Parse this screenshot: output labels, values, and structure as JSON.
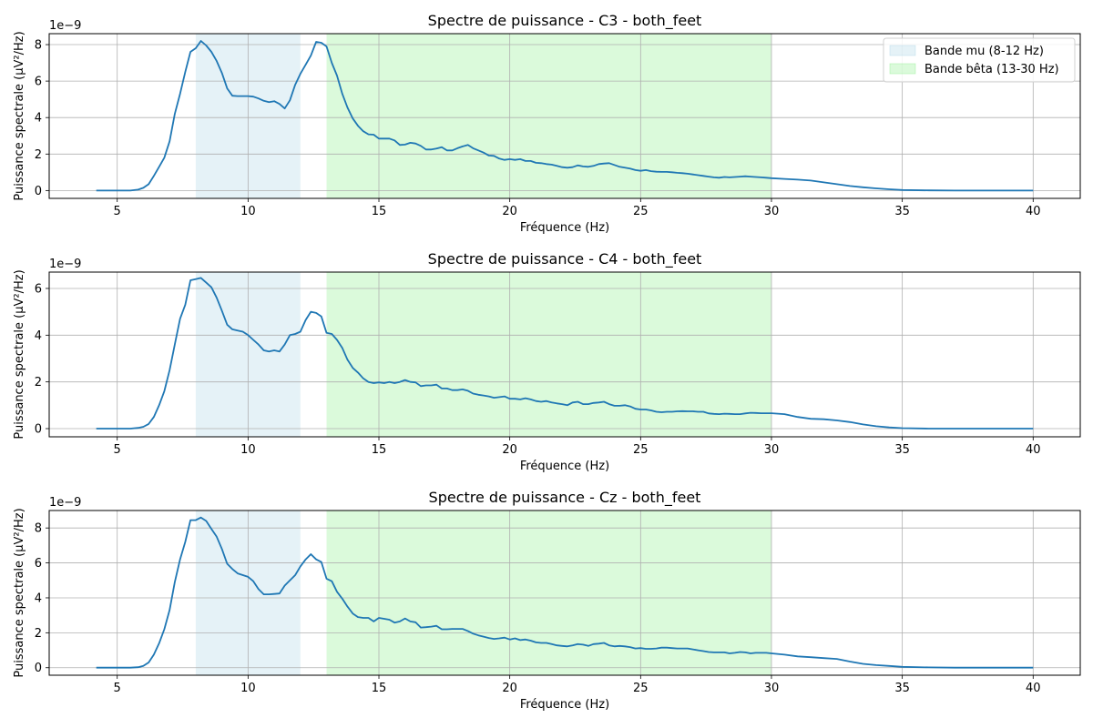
{
  "chart_data": [
    {
      "type": "line",
      "title": "Spectre de puissance - C3 - both_feet",
      "xlabel": "Fréquence (Hz)",
      "ylabel": "Puissance spectrale (µV²/Hz)",
      "y_offset_label": "1e−9",
      "xlim": [
        2.4,
        41.8
      ],
      "ylim": [
        -0.43,
        8.6
      ],
      "x_ticks": [
        5,
        10,
        15,
        20,
        25,
        30,
        35,
        40
      ],
      "y_ticks": [
        0,
        2,
        4,
        6,
        8
      ],
      "grid": true,
      "legend_position": "top-right",
      "bands": [
        {
          "name": "Bande mu (8-12 Hz)",
          "from": 8,
          "to": 12,
          "color": "#add8e6"
        },
        {
          "name": "Bande bêta (13-30 Hz)",
          "from": 13,
          "to": 30,
          "color": "#90ee90"
        }
      ],
      "series": [
        {
          "color": "#1f77b4",
          "x": [
            4.2,
            5.0,
            5.5,
            5.8,
            6.0,
            6.2,
            6.4,
            6.6,
            6.8,
            7.0,
            7.2,
            7.4,
            7.6,
            7.8,
            8.0,
            8.2,
            8.4,
            8.6,
            8.8,
            9.0,
            9.2,
            9.4,
            9.6,
            9.8,
            10.0,
            10.2,
            10.4,
            10.6,
            10.8,
            11.0,
            11.2,
            11.4,
            11.6,
            11.8,
            12.0,
            12.2,
            12.4,
            12.6,
            12.8,
            13.0,
            13.2,
            13.4,
            13.6,
            13.8,
            14.0,
            14.2,
            14.4,
            14.6,
            14.8,
            15.0,
            15.2,
            15.4,
            15.6,
            15.8,
            16.0,
            16.2,
            16.4,
            16.6,
            16.8,
            17.0,
            17.2,
            17.4,
            17.6,
            17.8,
            18.0,
            18.2,
            18.4,
            18.6,
            18.8,
            19.0,
            19.2,
            19.4,
            19.6,
            19.8,
            20.0,
            20.2,
            20.4,
            20.6,
            20.8,
            21.0,
            21.2,
            21.4,
            21.6,
            21.8,
            22.0,
            22.2,
            22.4,
            22.6,
            22.8,
            23.0,
            23.2,
            23.4,
            23.6,
            23.8,
            24.0,
            24.2,
            24.4,
            24.6,
            24.8,
            25.0,
            25.2,
            25.4,
            25.6,
            25.8,
            26.0,
            26.2,
            26.4,
            26.6,
            26.8,
            27.0,
            27.2,
            27.4,
            27.6,
            27.8,
            28.0,
            28.2,
            28.4,
            28.6,
            28.8,
            29.0,
            29.2,
            29.4,
            29.6,
            29.8,
            30.0,
            30.5,
            31.0,
            31.5,
            32.0,
            32.5,
            33.0,
            33.5,
            34.0,
            34.5,
            35.0,
            36.0,
            37.0,
            38.0,
            39.0,
            40.0
          ],
          "y": [
            0,
            0,
            0,
            0.05,
            0.15,
            0.35,
            0.8,
            1.3,
            1.8,
            2.7,
            4.2,
            5.3,
            6.5,
            7.6,
            7.8,
            8.2,
            7.95,
            7.6,
            7.1,
            6.45,
            5.6,
            5.2,
            5.18,
            5.18,
            5.18,
            5.15,
            5.05,
            4.92,
            4.85,
            4.9,
            4.75,
            4.5,
            4.95,
            5.8,
            6.4,
            6.9,
            7.4,
            8.15,
            8.1,
            7.9,
            7.0,
            6.3,
            5.3,
            4.55,
            3.95,
            3.55,
            3.25,
            3.08,
            3.06,
            2.85,
            2.85,
            2.85,
            2.75,
            2.5,
            2.52,
            2.62,
            2.58,
            2.45,
            2.25,
            2.25,
            2.3,
            2.38,
            2.2,
            2.2,
            2.32,
            2.42,
            2.5,
            2.32,
            2.2,
            2.08,
            1.92,
            1.9,
            1.75,
            1.68,
            1.72,
            1.68,
            1.72,
            1.62,
            1.62,
            1.52,
            1.5,
            1.45,
            1.42,
            1.35,
            1.28,
            1.25,
            1.28,
            1.38,
            1.32,
            1.3,
            1.35,
            1.45,
            1.48,
            1.5,
            1.4,
            1.3,
            1.25,
            1.2,
            1.12,
            1.08,
            1.12,
            1.06,
            1.03,
            1.02,
            1.02,
            1.0,
            0.97,
            0.95,
            0.92,
            0.88,
            0.84,
            0.8,
            0.76,
            0.72,
            0.7,
            0.74,
            0.72,
            0.74,
            0.76,
            0.78,
            0.76,
            0.74,
            0.72,
            0.7,
            0.68,
            0.64,
            0.6,
            0.55,
            0.45,
            0.35,
            0.25,
            0.18,
            0.12,
            0.07,
            0.03,
            0.01,
            0,
            0,
            0,
            0
          ]
        }
      ]
    },
    {
      "type": "line",
      "title": "Spectre de puissance - C4 - both_feet",
      "xlabel": "Fréquence (Hz)",
      "ylabel": "Puissance spectrale (µV²/Hz)",
      "y_offset_label": "1e−9",
      "xlim": [
        2.4,
        41.8
      ],
      "ylim": [
        -0.35,
        6.7
      ],
      "x_ticks": [
        5,
        10,
        15,
        20,
        25,
        30,
        35,
        40
      ],
      "y_ticks": [
        0,
        2,
        4,
        6
      ],
      "grid": true,
      "bands": [
        {
          "from": 8,
          "to": 12,
          "color": "#add8e6"
        },
        {
          "from": 13,
          "to": 30,
          "color": "#90ee90"
        }
      ],
      "series": [
        {
          "color": "#1f77b4",
          "x": [
            4.2,
            5.0,
            5.5,
            5.8,
            6.0,
            6.2,
            6.4,
            6.6,
            6.8,
            7.0,
            7.2,
            7.4,
            7.6,
            7.8,
            8.0,
            8.2,
            8.4,
            8.6,
            8.8,
            9.0,
            9.2,
            9.4,
            9.6,
            9.8,
            10.0,
            10.2,
            10.4,
            10.6,
            10.8,
            11.0,
            11.2,
            11.4,
            11.6,
            11.8,
            12.0,
            12.2,
            12.4,
            12.6,
            12.8,
            13.0,
            13.2,
            13.4,
            13.6,
            13.8,
            14.0,
            14.2,
            14.4,
            14.6,
            14.8,
            15.0,
            15.2,
            15.4,
            15.6,
            15.8,
            16.0,
            16.2,
            16.4,
            16.6,
            16.8,
            17.0,
            17.2,
            17.4,
            17.6,
            17.8,
            18.0,
            18.2,
            18.4,
            18.6,
            18.8,
            19.0,
            19.2,
            19.4,
            19.6,
            19.8,
            20.0,
            20.2,
            20.4,
            20.6,
            20.8,
            21.0,
            21.2,
            21.4,
            21.6,
            21.8,
            22.0,
            22.2,
            22.4,
            22.6,
            22.8,
            23.0,
            23.2,
            23.4,
            23.6,
            23.8,
            24.0,
            24.2,
            24.4,
            24.6,
            24.8,
            25.0,
            25.2,
            25.4,
            25.6,
            25.8,
            26.0,
            26.2,
            26.4,
            26.6,
            26.8,
            27.0,
            27.2,
            27.4,
            27.6,
            27.8,
            28.0,
            28.2,
            28.4,
            28.6,
            28.8,
            29.0,
            29.2,
            29.4,
            29.6,
            29.8,
            30.0,
            30.5,
            31.0,
            31.5,
            32.0,
            32.5,
            33.0,
            33.5,
            34.0,
            34.5,
            35.0,
            36.0,
            37.0,
            38.0,
            39.0,
            40.0
          ],
          "y": [
            0,
            0,
            0,
            0.03,
            0.08,
            0.2,
            0.5,
            1.0,
            1.6,
            2.5,
            3.6,
            4.7,
            5.3,
            6.35,
            6.4,
            6.45,
            6.25,
            6.05,
            5.6,
            5.05,
            4.45,
            4.25,
            4.2,
            4.15,
            4.0,
            3.8,
            3.6,
            3.35,
            3.3,
            3.35,
            3.3,
            3.6,
            4.0,
            4.05,
            4.15,
            4.65,
            5.0,
            4.95,
            4.8,
            4.1,
            4.05,
            3.8,
            3.45,
            2.95,
            2.6,
            2.4,
            2.15,
            2.0,
            1.95,
            1.98,
            1.95,
            2.0,
            1.95,
            2.0,
            2.08,
            2.0,
            1.98,
            1.82,
            1.85,
            1.85,
            1.88,
            1.72,
            1.72,
            1.65,
            1.65,
            1.68,
            1.62,
            1.5,
            1.45,
            1.42,
            1.38,
            1.32,
            1.35,
            1.38,
            1.28,
            1.28,
            1.25,
            1.3,
            1.25,
            1.18,
            1.15,
            1.18,
            1.12,
            1.08,
            1.05,
            1.0,
            1.12,
            1.15,
            1.05,
            1.05,
            1.1,
            1.12,
            1.15,
            1.05,
            0.98,
            0.98,
            1.0,
            0.95,
            0.85,
            0.82,
            0.82,
            0.78,
            0.72,
            0.7,
            0.72,
            0.72,
            0.74,
            0.75,
            0.74,
            0.74,
            0.72,
            0.72,
            0.65,
            0.63,
            0.62,
            0.64,
            0.63,
            0.62,
            0.62,
            0.65,
            0.68,
            0.67,
            0.66,
            0.66,
            0.66,
            0.62,
            0.5,
            0.42,
            0.4,
            0.35,
            0.28,
            0.18,
            0.1,
            0.05,
            0.02,
            0,
            0,
            0,
            0,
            0
          ]
        }
      ]
    },
    {
      "type": "line",
      "title": "Spectre de puissance - Cz - both_feet",
      "xlabel": "Fréquence (Hz)",
      "ylabel": "Puissance spectrale (µV²/Hz)",
      "y_offset_label": "1e−9",
      "xlim": [
        2.4,
        41.8
      ],
      "ylim": [
        -0.43,
        9.0
      ],
      "x_ticks": [
        5,
        10,
        15,
        20,
        25,
        30,
        35,
        40
      ],
      "y_ticks": [
        0,
        2,
        4,
        6,
        8
      ],
      "grid": true,
      "bands": [
        {
          "from": 8,
          "to": 12,
          "color": "#add8e6"
        },
        {
          "from": 13,
          "to": 30,
          "color": "#90ee90"
        }
      ],
      "series": [
        {
          "color": "#1f77b4",
          "x": [
            4.2,
            5.0,
            5.5,
            5.8,
            6.0,
            6.2,
            6.4,
            6.6,
            6.8,
            7.0,
            7.2,
            7.4,
            7.6,
            7.8,
            8.0,
            8.2,
            8.4,
            8.6,
            8.8,
            9.0,
            9.2,
            9.4,
            9.6,
            9.8,
            10.0,
            10.2,
            10.4,
            10.6,
            10.8,
            11.0,
            11.2,
            11.4,
            11.6,
            11.8,
            12.0,
            12.2,
            12.4,
            12.6,
            12.8,
            13.0,
            13.2,
            13.4,
            13.6,
            13.8,
            14.0,
            14.2,
            14.4,
            14.6,
            14.8,
            15.0,
            15.2,
            15.4,
            15.6,
            15.8,
            16.0,
            16.2,
            16.4,
            16.6,
            16.8,
            17.0,
            17.2,
            17.4,
            17.6,
            17.8,
            18.0,
            18.2,
            18.4,
            18.6,
            18.8,
            19.0,
            19.2,
            19.4,
            19.6,
            19.8,
            20.0,
            20.2,
            20.4,
            20.6,
            20.8,
            21.0,
            21.2,
            21.4,
            21.6,
            21.8,
            22.0,
            22.2,
            22.4,
            22.6,
            22.8,
            23.0,
            23.2,
            23.4,
            23.6,
            23.8,
            24.0,
            24.2,
            24.4,
            24.6,
            24.8,
            25.0,
            25.2,
            25.4,
            25.6,
            25.8,
            26.0,
            26.2,
            26.4,
            26.6,
            26.8,
            27.0,
            27.2,
            27.4,
            27.6,
            27.8,
            28.0,
            28.2,
            28.4,
            28.6,
            28.8,
            29.0,
            29.2,
            29.4,
            29.6,
            29.8,
            30.0,
            30.5,
            31.0,
            31.5,
            32.0,
            32.5,
            33.0,
            33.5,
            34.0,
            34.5,
            35.0,
            36.0,
            37.0,
            38.0,
            39.0,
            40.0
          ],
          "y": [
            0,
            0,
            0,
            0.03,
            0.1,
            0.3,
            0.75,
            1.4,
            2.2,
            3.3,
            4.9,
            6.2,
            7.2,
            8.45,
            8.45,
            8.6,
            8.4,
            7.95,
            7.5,
            6.8,
            5.95,
            5.65,
            5.4,
            5.3,
            5.2,
            4.95,
            4.5,
            4.2,
            4.2,
            4.22,
            4.25,
            4.7,
            5.0,
            5.3,
            5.8,
            6.2,
            6.5,
            6.2,
            6.05,
            5.1,
            4.95,
            4.35,
            3.95,
            3.5,
            3.1,
            2.9,
            2.85,
            2.85,
            2.65,
            2.85,
            2.8,
            2.75,
            2.58,
            2.65,
            2.82,
            2.65,
            2.6,
            2.3,
            2.32,
            2.35,
            2.4,
            2.2,
            2.2,
            2.22,
            2.22,
            2.22,
            2.1,
            1.95,
            1.85,
            1.78,
            1.7,
            1.65,
            1.68,
            1.72,
            1.62,
            1.68,
            1.58,
            1.62,
            1.55,
            1.45,
            1.42,
            1.42,
            1.35,
            1.28,
            1.25,
            1.22,
            1.28,
            1.35,
            1.32,
            1.25,
            1.35,
            1.38,
            1.42,
            1.28,
            1.22,
            1.25,
            1.22,
            1.18,
            1.1,
            1.12,
            1.08,
            1.08,
            1.1,
            1.15,
            1.15,
            1.12,
            1.1,
            1.1,
            1.1,
            1.05,
            1.0,
            0.95,
            0.9,
            0.88,
            0.88,
            0.88,
            0.82,
            0.85,
            0.9,
            0.88,
            0.82,
            0.85,
            0.85,
            0.85,
            0.82,
            0.75,
            0.65,
            0.6,
            0.55,
            0.5,
            0.35,
            0.22,
            0.15,
            0.1,
            0.05,
            0.02,
            0,
            0,
            0,
            0
          ]
        }
      ]
    }
  ]
}
